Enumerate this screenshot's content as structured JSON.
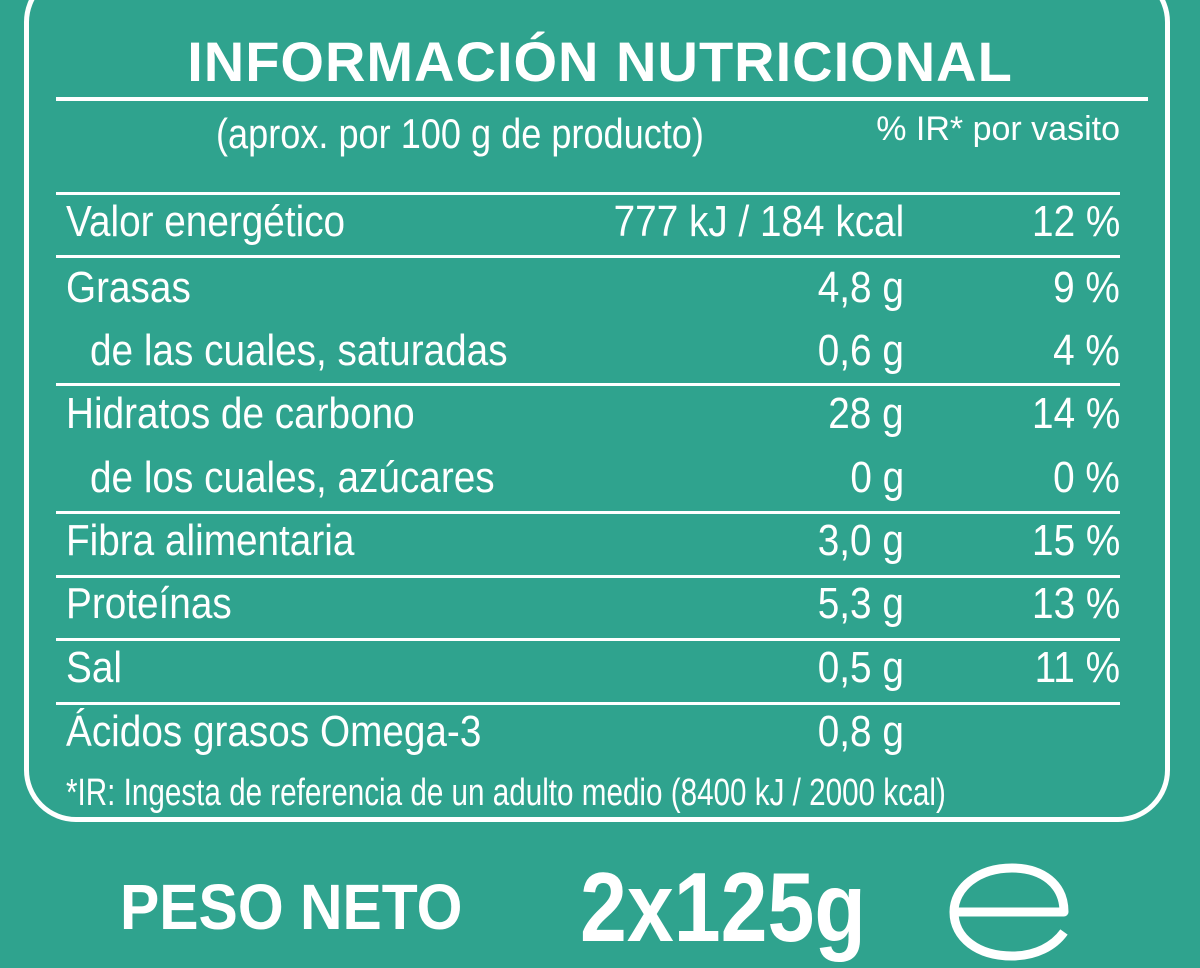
{
  "label": {
    "title": "INFORMACIÓN NUTRICIONAL",
    "subtitle": "(aprox. por 100 g de producto)",
    "ir_header": "% IR* por vasito",
    "rows": [
      {
        "label": "Valor energético",
        "amount": "777 kJ / 184 kcal",
        "pct": "12 %"
      },
      {
        "label": "Grasas",
        "amount": "4,8 g",
        "pct": "9 %"
      },
      {
        "label": "de las cuales, saturadas",
        "amount": "0,6 g",
        "pct": "4 %"
      },
      {
        "label": "Hidratos de carbono",
        "amount": "28 g",
        "pct": "14 %"
      },
      {
        "label": "de los cuales, azúcares",
        "amount": "0 g",
        "pct": "0 %"
      },
      {
        "label": "Fibra alimentaria",
        "amount": "3,0 g",
        "pct": "15 %"
      },
      {
        "label": "Proteínas",
        "amount": "5,3 g",
        "pct": "13 %"
      },
      {
        "label": "Sal",
        "amount": "0,5 g",
        "pct": "11 %"
      },
      {
        "label": "Ácidos grasos Omega-3",
        "amount": "0,8 g",
        "pct": ""
      }
    ],
    "footnote": "*IR: Ingesta de referencia de un adulto medio (8400 kJ / 2000 kcal)",
    "net_weight_label": "PESO NETO",
    "net_weight_value": "2x125g",
    "estimated_sign_icon": "estimated-e-mark",
    "colors": {
      "background": "#2fa38e",
      "foreground": "#ffffff"
    }
  }
}
